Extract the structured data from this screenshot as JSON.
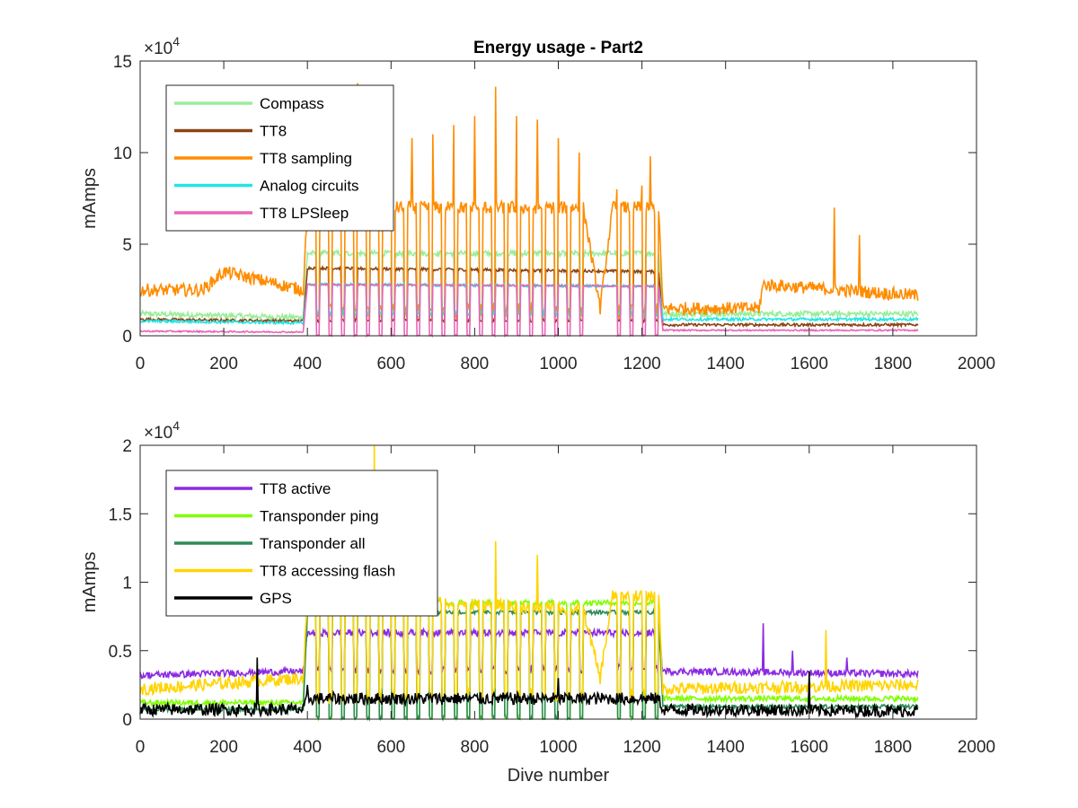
{
  "chart_data": [
    {
      "type": "line",
      "title": "Energy usage - Part2",
      "xlabel": "",
      "ylabel": "mAmps",
      "xlim": [
        0,
        2000
      ],
      "ylim": [
        0,
        150000
      ],
      "y_multiplier": "×10",
      "y_multiplier_exp": "4",
      "x_ticks": [
        "0",
        "200",
        "400",
        "600",
        "800",
        "1000",
        "1200",
        "1400",
        "1600",
        "1800",
        "2000"
      ],
      "y_ticks": [
        "0",
        "5",
        "10",
        "15"
      ],
      "legend_position": "top-left",
      "series": [
        {
          "name": "Compass",
          "color": "#98ee98",
          "base": [
            [
              0,
              12000
            ],
            [
              390,
              10000
            ],
            [
              400,
              45000
            ],
            [
              1240,
              45000
            ],
            [
              1250,
              12000
            ],
            [
              1860,
              12000
            ]
          ],
          "cyclic": true,
          "drop_to": 11000,
          "jitter": 3000,
          "spikes": []
        },
        {
          "name": "TT8",
          "color": "#8b4513",
          "base": [
            [
              0,
              9000
            ],
            [
              390,
              8000
            ],
            [
              400,
              37000
            ],
            [
              1240,
              35000
            ],
            [
              1250,
              6000
            ],
            [
              1860,
              6000
            ]
          ],
          "cyclic": true,
          "drop_to": 8000,
          "jitter": 1500,
          "spikes": []
        },
        {
          "name": "TT8 sampling",
          "color": "#ff8c00",
          "base": [
            [
              0,
              25000
            ],
            [
              150,
              25000
            ],
            [
              200,
              35000
            ],
            [
              390,
              25000
            ],
            [
              400,
              70000
            ],
            [
              1060,
              70000
            ],
            [
              1100,
              15000
            ],
            [
              1130,
              70000
            ],
            [
              1240,
              70000
            ],
            [
              1250,
              15000
            ],
            [
              1480,
              15000
            ],
            [
              1490,
              28000
            ],
            [
              1860,
              22000
            ]
          ],
          "cyclic": true,
          "drop_to": 12000,
          "jitter": 7000,
          "spikes": [
            [
              520,
              138000
            ],
            [
              600,
              95000
            ],
            [
              650,
              108000
            ],
            [
              700,
              110000
            ],
            [
              750,
              115000
            ],
            [
              800,
              120000
            ],
            [
              850,
              136000
            ],
            [
              900,
              120000
            ],
            [
              950,
              118000
            ],
            [
              1000,
              108000
            ],
            [
              1050,
              100000
            ],
            [
              1140,
              80000
            ],
            [
              1200,
              82000
            ],
            [
              1220,
              98000
            ],
            [
              1660,
              70000
            ],
            [
              1720,
              55000
            ]
          ]
        },
        {
          "name": "Analog circuits",
          "color": "#22e5e5",
          "base": [
            [
              0,
              8000
            ],
            [
              390,
              7000
            ],
            [
              400,
              28000
            ],
            [
              1240,
              27000
            ],
            [
              1250,
              9000
            ],
            [
              1860,
              9000
            ]
          ],
          "cyclic": true,
          "drop_to": 12000,
          "jitter": 1500,
          "spikes": []
        },
        {
          "name": "TT8 LPSleep",
          "color": "#e966b8",
          "base": [
            [
              0,
              2500
            ],
            [
              390,
              2000
            ],
            [
              400,
              28000
            ],
            [
              1240,
              27000
            ],
            [
              1250,
              3000
            ],
            [
              1860,
              3000
            ]
          ],
          "cyclic": true,
          "drop_to": 0,
          "jitter": 800,
          "spikes": []
        }
      ]
    },
    {
      "type": "line",
      "title": "",
      "xlabel": "Dive number",
      "ylabel": "mAmps",
      "xlim": [
        0,
        2000
      ],
      "ylim": [
        0,
        20000
      ],
      "y_multiplier": "×10",
      "y_multiplier_exp": "4",
      "x_ticks": [
        "0",
        "200",
        "400",
        "600",
        "800",
        "1000",
        "1200",
        "1400",
        "1600",
        "1800",
        "2000"
      ],
      "y_ticks": [
        "0",
        "0.5",
        "1",
        "1.5",
        "2"
      ],
      "legend_position": "top-left",
      "series": [
        {
          "name": "TT8 active",
          "color": "#8b2be2",
          "base": [
            [
              0,
              3200
            ],
            [
              390,
              3500
            ],
            [
              400,
              6300
            ],
            [
              1240,
              6300
            ],
            [
              1250,
              3500
            ],
            [
              1860,
              3300
            ]
          ],
          "cyclic": true,
          "drop_to": 3500,
          "jitter": 500,
          "spikes": [
            [
              1490,
              7000
            ],
            [
              1560,
              5000
            ],
            [
              1690,
              4500
            ]
          ]
        },
        {
          "name": "Transponder ping",
          "color": "#7fff00",
          "base": [
            [
              0,
              1200
            ],
            [
              390,
              1200
            ],
            [
              400,
              8500
            ],
            [
              1240,
              8500
            ],
            [
              1250,
              1500
            ],
            [
              1860,
              1500
            ]
          ],
          "cyclic": true,
          "drop_to": 0,
          "jitter": 400,
          "spikes": []
        },
        {
          "name": "Transponder all",
          "color": "#2e8b57",
          "base": [
            [
              0,
              700
            ],
            [
              390,
              700
            ],
            [
              400,
              7800
            ],
            [
              1240,
              7800
            ],
            [
              1250,
              900
            ],
            [
              1860,
              900
            ]
          ],
          "cyclic": true,
          "drop_to": 0,
          "jitter": 300,
          "spikes": []
        },
        {
          "name": "TT8 accessing flash",
          "color": "#ffd400",
          "base": [
            [
              0,
              2200
            ],
            [
              390,
              3000
            ],
            [
              400,
              9000
            ],
            [
              1060,
              8000
            ],
            [
              1100,
              3000
            ],
            [
              1130,
              9000
            ],
            [
              1240,
              9000
            ],
            [
              1250,
              2200
            ],
            [
              1860,
              2500
            ]
          ],
          "cyclic": true,
          "drop_to": 1500,
          "jitter": 900,
          "spikes": [
            [
              560,
              20000
            ],
            [
              850,
              13000
            ],
            [
              950,
              12000
            ],
            [
              1640,
              6500
            ]
          ]
        },
        {
          "name": "GPS",
          "color": "#000000",
          "base": [
            [
              0,
              700
            ],
            [
              390,
              700
            ],
            [
              400,
              1500
            ],
            [
              1240,
              1500
            ],
            [
              1250,
              700
            ],
            [
              1860,
              600
            ]
          ],
          "cyclic": false,
          "drop_to": 0,
          "jitter": 900,
          "spikes": [
            [
              280,
              4500
            ],
            [
              400,
              2500
            ],
            [
              1000,
              3000
            ],
            [
              1600,
              3500
            ]
          ]
        }
      ]
    }
  ]
}
